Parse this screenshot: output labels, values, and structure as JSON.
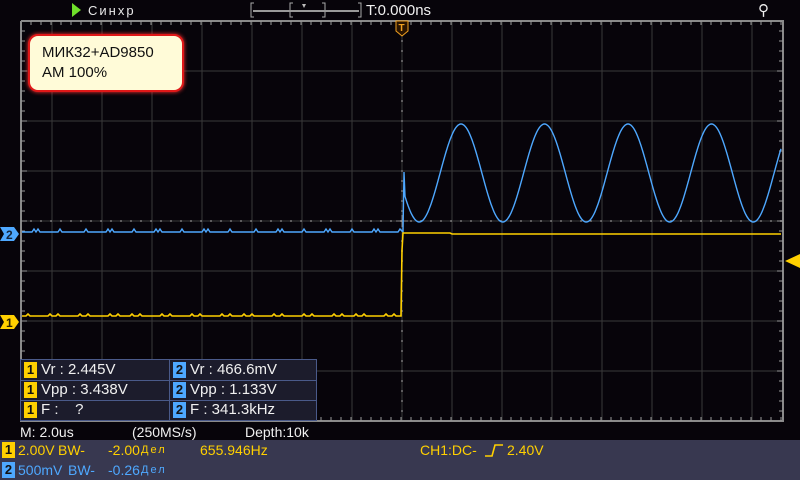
{
  "topbar": {
    "run_state_icon": "play-triangle-icon",
    "mode": "Синхр",
    "trigger_time": "T:0.000ns",
    "usb_icon": "usb-icon"
  },
  "display": {
    "trigger_marker": "T",
    "ch1_marker": "1",
    "ch2_marker": "2",
    "colors": {
      "ch1": "#ffd000",
      "ch2": "#4ea8ff",
      "trigger": "#ffd000",
      "grid": "#3a3a3a"
    }
  },
  "note": {
    "line1": "МИК32+AD9850",
    "line2": "AM 100%"
  },
  "measurements": [
    {
      "ch1": {
        "badge": "1",
        "text": "Vr : 2.445V"
      },
      "ch2": {
        "badge": "2",
        "text": "Vr : 466.6mV"
      }
    },
    {
      "ch1": {
        "badge": "1",
        "text": "Vpp : 3.438V"
      },
      "ch2": {
        "badge": "2",
        "text": "Vpp : 1.133V"
      }
    },
    {
      "ch1": {
        "badge": "1",
        "text": "F :    ?"
      },
      "ch2": {
        "badge": "2",
        "text": "F : 341.3kHz"
      }
    }
  ],
  "status": {
    "timebase": "M: 2.0us",
    "sample_rate": "(250MS/s)",
    "depth": "Depth:10k"
  },
  "bottom": {
    "ch1": {
      "badge": "1",
      "scale": "2.00V",
      "bw": "BW-",
      "offset": "-2.00",
      "unit": "Дел",
      "freq": "655.946Hz"
    },
    "ch2": {
      "badge": "2",
      "scale": "500mV",
      "bw": "BW-",
      "offset": "-0.26",
      "unit": "Дел"
    },
    "trigger": {
      "source": "CH1:DC-",
      "edge_icon": "rising-edge-icon",
      "level": "2.40V"
    }
  }
}
